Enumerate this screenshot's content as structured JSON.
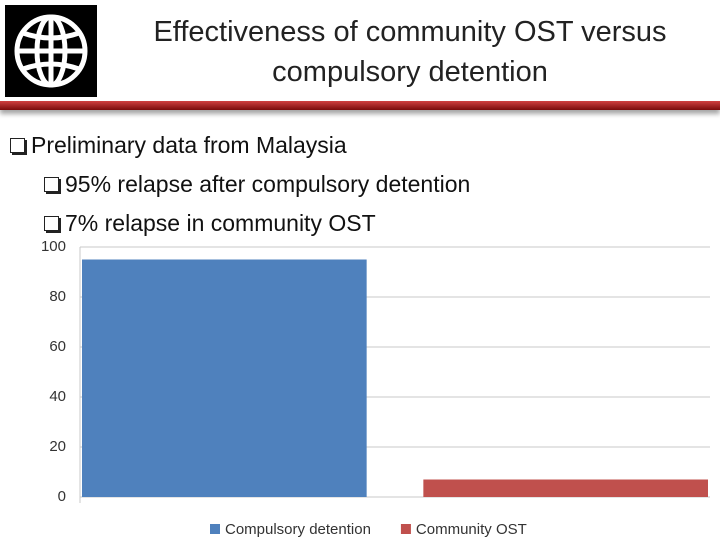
{
  "header": {
    "title": "Effectiveness of community OST versus compulsory detention"
  },
  "bullets": [
    {
      "text": "Preliminary data from Malaysia",
      "level": 1
    },
    {
      "text": "95% relapse after compulsory detention",
      "level": 2
    },
    {
      "text": "7% relapse in community OST",
      "level": 2
    }
  ],
  "chart_data": {
    "type": "bar",
    "categories": [
      null
    ],
    "series": [
      {
        "name": "Compulsory detention",
        "color": "#4f81bd",
        "values": [
          95
        ]
      },
      {
        "name": "Community OST",
        "color": "#c0504d",
        "values": [
          7
        ]
      }
    ],
    "ylim": [
      0,
      100
    ],
    "yticks": [
      0,
      20,
      40,
      60,
      80,
      100
    ],
    "grid": true,
    "legend": "bottom"
  }
}
